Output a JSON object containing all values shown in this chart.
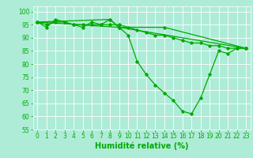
{
  "background_color": "#aeecd8",
  "grid_color": "#ffffff",
  "line_color": "#00aa00",
  "series": [
    {
      "x": [
        0,
        1,
        2,
        3,
        4,
        5,
        6,
        7,
        8,
        9,
        10,
        11,
        12,
        13,
        14,
        15,
        16,
        17,
        18,
        19,
        20,
        21,
        22,
        23
      ],
      "y": [
        96,
        94,
        97,
        96,
        95,
        94,
        96,
        95,
        97,
        94,
        91,
        81,
        76,
        72,
        69,
        66,
        62,
        61,
        67,
        76,
        85,
        84,
        86,
        86
      ]
    },
    {
      "x": [
        0,
        1,
        2,
        3,
        4,
        5,
        6,
        7,
        8,
        9,
        10,
        11,
        12,
        13,
        14,
        15,
        16,
        17,
        18,
        19,
        20,
        21,
        22,
        23
      ],
      "y": [
        96,
        95,
        96,
        96,
        95,
        95,
        95,
        95,
        95,
        95,
        94,
        93,
        92,
        91,
        91,
        90,
        89,
        88,
        88,
        87,
        87,
        86,
        86,
        86
      ]
    },
    {
      "x": [
        0,
        9,
        23
      ],
      "y": [
        96,
        94,
        86
      ]
    },
    {
      "x": [
        0,
        8,
        9,
        14,
        23
      ],
      "y": [
        96,
        97,
        94,
        94,
        86
      ]
    }
  ],
  "xlim": [
    -0.5,
    23.5
  ],
  "ylim": [
    55,
    102
  ],
  "yticks": [
    55,
    60,
    65,
    70,
    75,
    80,
    85,
    90,
    95,
    100
  ],
  "xticks": [
    0,
    1,
    2,
    3,
    4,
    5,
    6,
    7,
    8,
    9,
    10,
    11,
    12,
    13,
    14,
    15,
    16,
    17,
    18,
    19,
    20,
    21,
    22,
    23
  ],
  "xlabel": "Humidité relative (%)",
  "xlabel_color": "#00aa00",
  "tick_color": "#00aa00",
  "tick_fontsize": 5.5,
  "xlabel_fontsize": 7,
  "marker": "D",
  "marker_size": 1.8,
  "linewidth": 0.9
}
